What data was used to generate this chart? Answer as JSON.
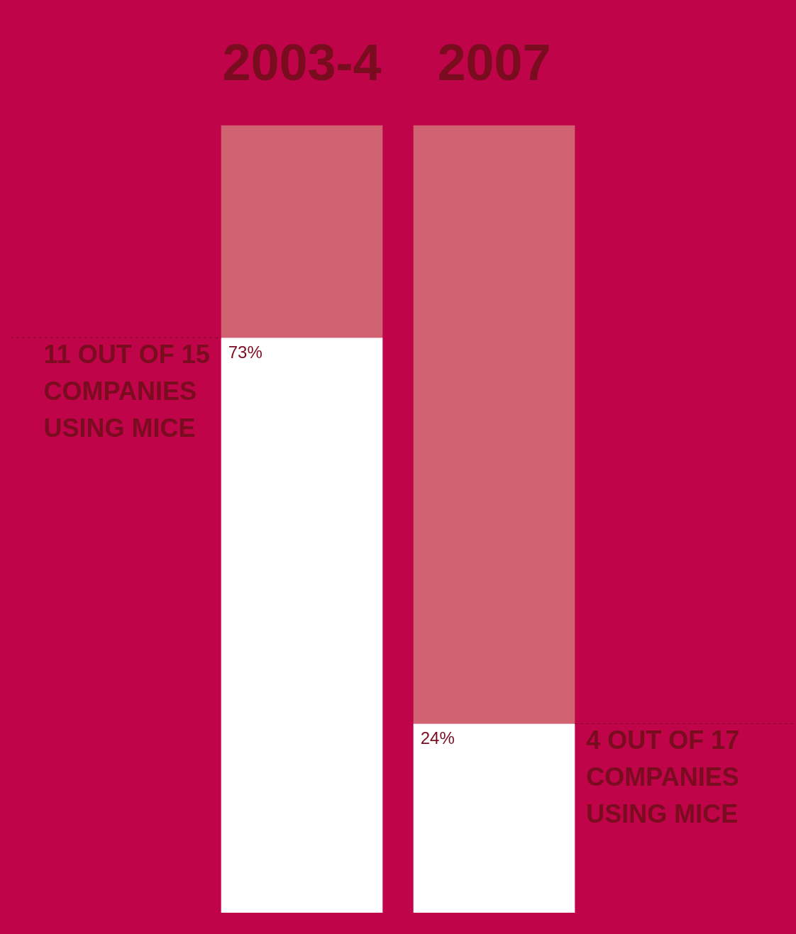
{
  "chart_data": {
    "type": "bar",
    "stacked": true,
    "categories": [
      "2003-4",
      "2007"
    ],
    "series": [
      {
        "color": "#ffffff",
        "values": [
          73,
          24
        ],
        "value_labels": [
          "73%",
          "24%"
        ]
      },
      {
        "color": "#d06272",
        "values": [
          27,
          76
        ]
      }
    ],
    "ylim": [
      0,
      100
    ],
    "tick_labels": "x",
    "grid": false,
    "legend": false,
    "annotations": [
      "11 OUT OF 15 COMPANIES USING MICE",
      "4 OUT OF 17 COMPANIES USING MICE"
    ]
  }
}
